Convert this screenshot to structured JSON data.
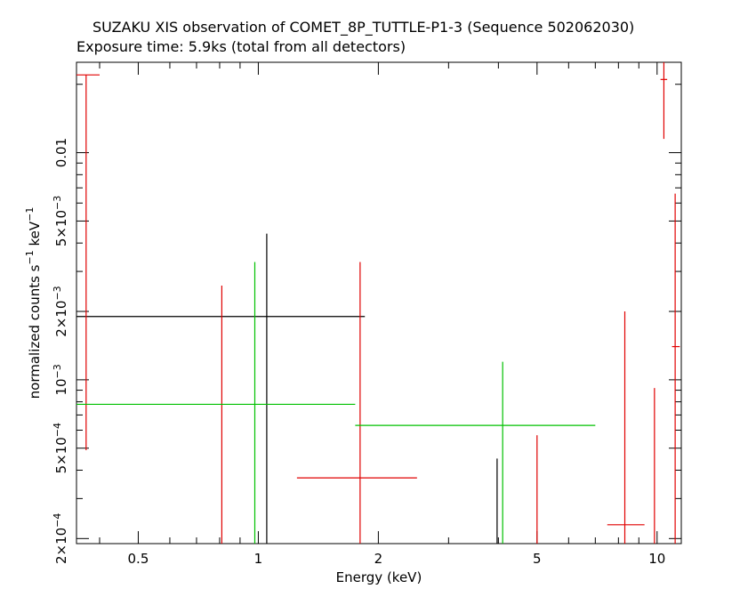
{
  "title": "SUZAKU XIS observation of COMET_8P_TUTTLE-P1-3 (Sequence 502062030)",
  "subtitle": "Exposure time: 5.9ks (total from all detectors)",
  "colors": {
    "black": "#000000",
    "red": "#e00000",
    "green": "#00c000"
  },
  "chart_data": {
    "type": "scatter",
    "xscale": "log",
    "yscale": "log",
    "xlabel": "Energy (keV)",
    "ylabel": "normalized counts s^-1 keV^-1",
    "xlim": [
      0.35,
      11.5
    ],
    "ylim": [
      0.00019,
      0.025
    ],
    "x_ticks": [
      {
        "value": 0.5,
        "label": "0.5"
      },
      {
        "value": 1,
        "label": "1"
      },
      {
        "value": 2,
        "label": "2"
      },
      {
        "value": 5,
        "label": "5"
      },
      {
        "value": 10,
        "label": "10"
      }
    ],
    "y_ticks": [
      {
        "value": 0.01,
        "label": "0.01"
      },
      {
        "value": 0.005,
        "mant": "5×10",
        "exp": "−3"
      },
      {
        "value": 0.002,
        "mant": "2×10",
        "exp": "−3"
      },
      {
        "value": 0.001,
        "mant": "10",
        "exp": "−3"
      },
      {
        "value": 0.0005,
        "mant": "5×10",
        "exp": "−4"
      },
      {
        "value": 0.0002,
        "mant": "2×10",
        "exp": "−4"
      }
    ],
    "series": [
      {
        "color": "black",
        "points": [
          {
            "x": 1.05,
            "xlo": 0.35,
            "xhi": 1.85,
            "y": 0.0019,
            "ylo": 0.00019,
            "yhi": 0.0044
          },
          {
            "x": 3.97,
            "xlo": 3.97,
            "xhi": 3.97,
            "y": 0.00045,
            "ylo": 0.00019,
            "yhi": 0.00045
          }
        ]
      },
      {
        "color": "red",
        "points": [
          {
            "x": 0.37,
            "xlo": 0.35,
            "xhi": 0.4,
            "y": 0.022,
            "ylo": 0.00049,
            "yhi": 0.022
          },
          {
            "x": 0.81,
            "xlo": 0.81,
            "xhi": 0.81,
            "y": 0.0026,
            "ylo": 0.00019,
            "yhi": 0.0026
          },
          {
            "x": 1.8,
            "xlo": 1.25,
            "xhi": 2.5,
            "y": 0.00037,
            "ylo": 0.00019,
            "yhi": 0.0033
          },
          {
            "x": 5.0,
            "xlo": 5.0,
            "xhi": 5.0,
            "y": 0.00057,
            "ylo": 0.00019,
            "yhi": 0.00057
          },
          {
            "x": 8.3,
            "xlo": 7.5,
            "xhi": 9.3,
            "y": 0.00023,
            "ylo": 0.00019,
            "yhi": 0.002
          },
          {
            "x": 9.85,
            "xlo": 9.85,
            "xhi": 9.85,
            "y": 0.00092,
            "ylo": 0.00019,
            "yhi": 0.00092
          },
          {
            "x": 10.4,
            "xlo": 10.2,
            "xhi": 10.6,
            "y": 0.021,
            "ylo": 0.0115,
            "yhi": 0.025
          },
          {
            "x": 11.1,
            "xlo": 10.9,
            "xhi": 11.4,
            "y": 0.0014,
            "ylo": 0.00019,
            "yhi": 0.0066
          }
        ]
      },
      {
        "color": "green",
        "points": [
          {
            "x": 0.98,
            "xlo": 0.35,
            "xhi": 1.75,
            "y": 0.00078,
            "ylo": 0.00019,
            "yhi": 0.0033
          },
          {
            "x": 4.1,
            "xlo": 1.75,
            "xhi": 7.0,
            "y": 0.00063,
            "ylo": 0.00019,
            "yhi": 0.0012
          }
        ]
      }
    ]
  }
}
